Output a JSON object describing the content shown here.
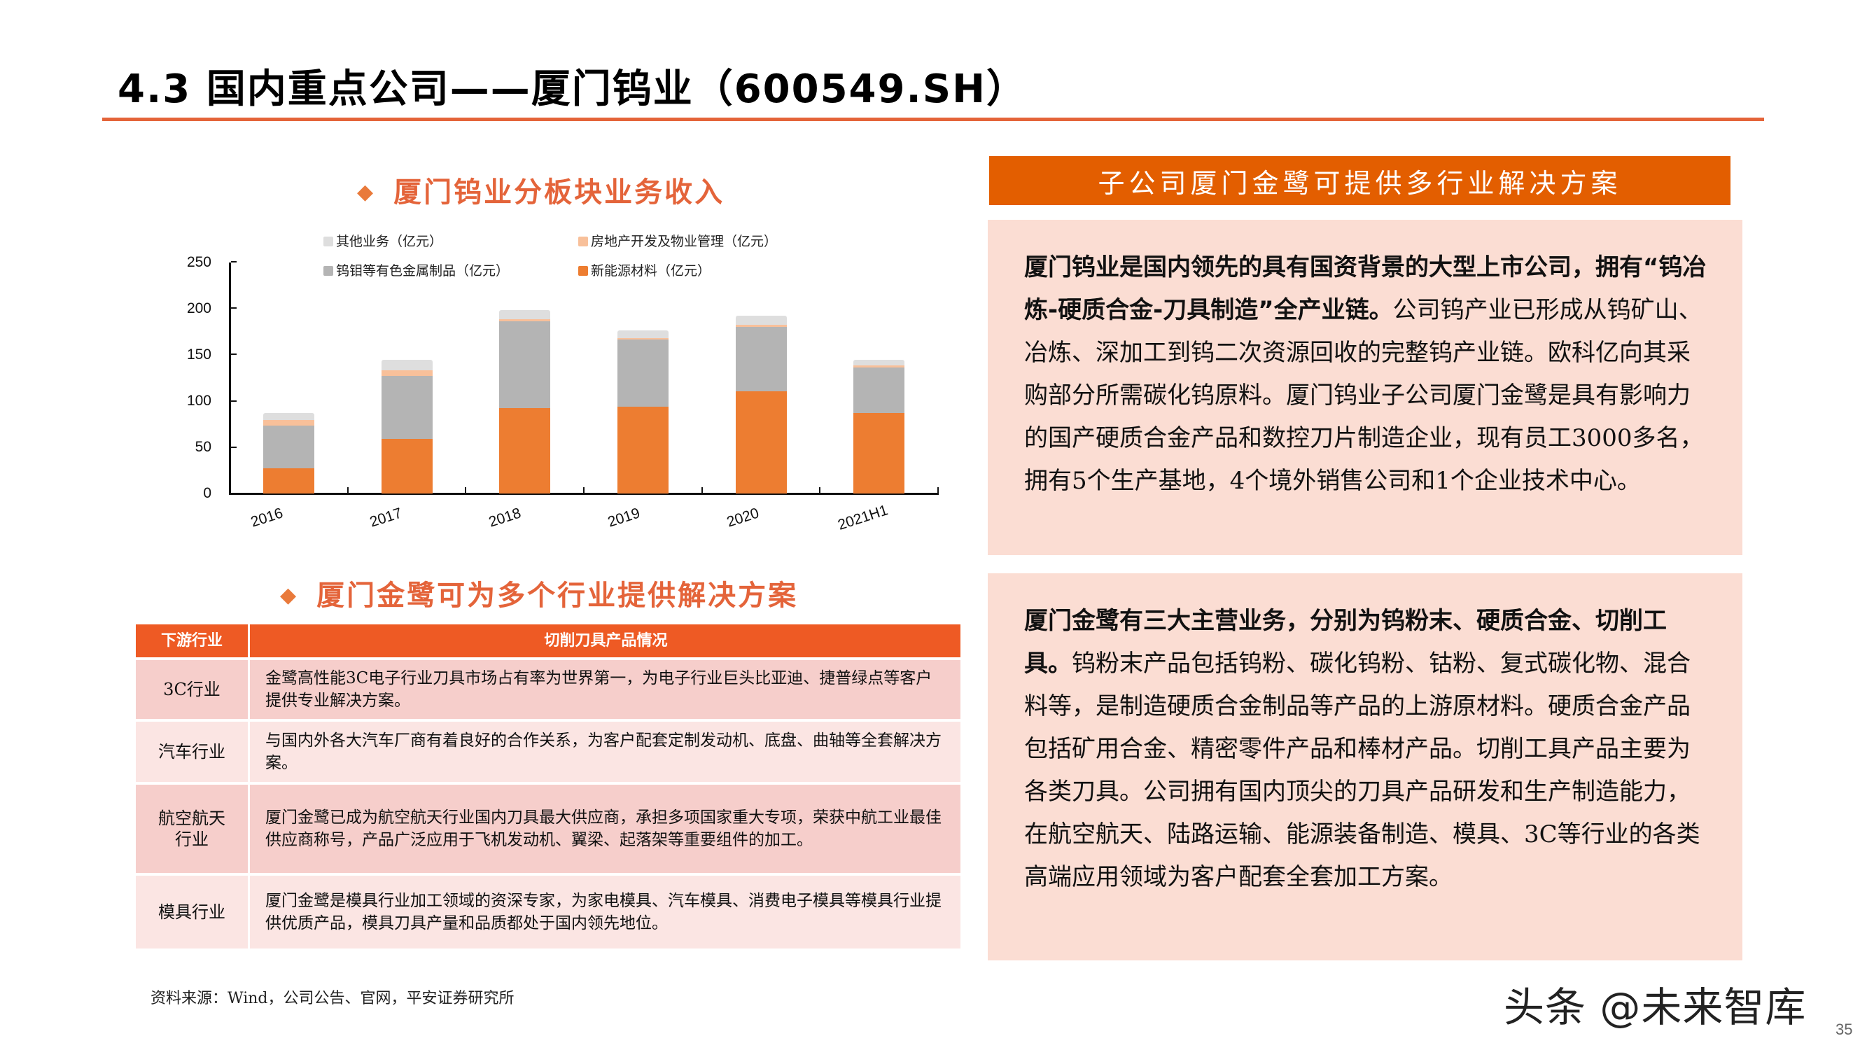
{
  "page": {
    "title": "4.3 国内重点公司——厦门钨业（600549.SH）",
    "page_number": "35",
    "watermark": "头条 @未来智库",
    "source": "资料来源：Wind，公司公告、官网，平安证券研究所"
  },
  "chart_section": {
    "title": "厦门钨业分板块业务收入",
    "diamond": "◆"
  },
  "chart_data": {
    "type": "bar",
    "stacked": true,
    "title": "厦门钨业分板块业务收入",
    "xlabel": "",
    "ylabel": "",
    "ylim": [
      0,
      250
    ],
    "yticks": [
      "0",
      "50",
      "100",
      "150",
      "200",
      "250"
    ],
    "grid": false,
    "legend_position": "top",
    "categories": [
      "2016",
      "2017",
      "2018",
      "2019",
      "2020",
      "2021H1"
    ],
    "series": [
      {
        "name": "新能源材料（亿元）",
        "color": "#ED7D31",
        "values": [
          27,
          59,
          92,
          94,
          110,
          87
        ]
      },
      {
        "name": "钨钼等有色金属制品（亿元）",
        "color": "#B4B4B4",
        "values": [
          46,
          68,
          94,
          72,
          70,
          49
        ]
      },
      {
        "name": "房地产开发及物业管理（亿元）",
        "color": "#F8C09A",
        "values": [
          6,
          6,
          2,
          2,
          2,
          2
        ]
      },
      {
        "name": "其他业务（亿元）",
        "color": "#DEDEDE",
        "values": [
          8,
          11,
          10,
          8,
          10,
          6
        ]
      }
    ],
    "legend": [
      {
        "label": "其他业务（亿元）",
        "color": "#DEDEDE"
      },
      {
        "label": "房地产开发及物业管理（亿元）",
        "color": "#F8C09A"
      },
      {
        "label": "钨钼等有色金属制品（亿元）",
        "color": "#B4B4B4"
      },
      {
        "label": "新能源材料（亿元）",
        "color": "#ED7D31"
      }
    ]
  },
  "table_section": {
    "title": "厦门金鹭可为多个行业提供解决方案",
    "diamond": "◆",
    "headers": [
      "下游行业",
      "切削刀具产品情况"
    ],
    "rows": [
      {
        "industry": "3C行业",
        "desc": "金鹭高性能3C电子行业刀具市场占有率为世界第一，为电子行业巨头比亚迪、捷普绿点等客户提供专业解决方案。"
      },
      {
        "industry": "汽车行业",
        "desc": "与国内外各大汽车厂商有着良好的合作关系，为客户配套定制发动机、底盘、曲轴等全套解决方案。"
      },
      {
        "industry": "航空航天行业",
        "desc": "厦门金鹭已成为航空航天行业国内刀具最大供应商，承担多项国家重大专项，荣获中航工业最佳供应商称号，产品广泛应用于飞机发动机、翼梁、起落架等重要组件的加工。"
      },
      {
        "industry": "模具行业",
        "desc": "厦门金鹭是模具行业加工领域的资深专家，为家电模具、汽车模具、消费电子模具等模具行业提供优质产品，模具刀具产量和品质都处于国内领先地位。"
      }
    ]
  },
  "right_panel": {
    "header": "子公司厦门金鹭可提供多行业解决方案",
    "box1": {
      "bold": "厦门钨业是国内领先的具有国资背景的大型上市公司，拥有“钨冶炼-硬质合金-刀具制造”全产业链。",
      "text": "公司钨产业已形成从钨矿山、冶炼、深加工到钨二次资源回收的完整钨产业链。欧科亿向其采购部分所需碳化钨原料。厦门钨业子公司厦门金鹭是具有影响力的国产硬质合金产品和数控刀片制造企业，现有员工3000多名，拥有5个生产基地，4个境外销售公司和1个企业技术中心。"
    },
    "box2": {
      "bold": "厦门金鹭有三大主营业务，分别为钨粉末、硬质合金、切削工具。",
      "text": "钨粉末产品包括钨粉、碳化钨粉、钴粉、复式碳化物、混合料等，是制造硬质合金制品等产品的上游原材料。硬质合金产品包括矿用合金、精密零件产品和棒材产品。切削工具产品主要为各类刀具。公司拥有国内顶尖的刀具产品研发和生产制造能力，在航空航天、陆路运输、能源装备制造、模具、3C等行业的各类高端应用领域为客户配套全套加工方案。"
    }
  }
}
